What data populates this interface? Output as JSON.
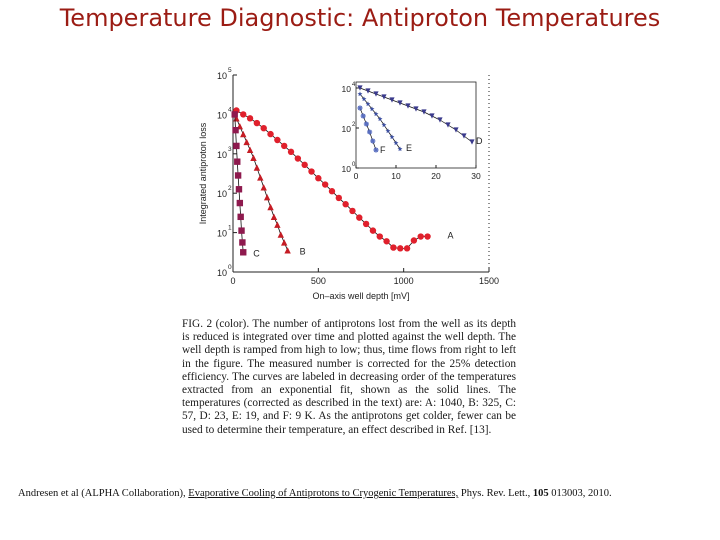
{
  "slide": {
    "title": "Temperature Diagnostic: Antiproton Temperatures"
  },
  "colors": {
    "title": "#9b1c14",
    "seriesA": "#e0202c",
    "seriesB": "#c51c24",
    "seriesC": "#8e1a4e",
    "seriesD": "#3a3a8c",
    "seriesE": "#3b4ea0",
    "seriesF": "#5a6fc0"
  },
  "chart_data": {
    "type": "scatter",
    "xlabel": "On–axis well depth [mV]",
    "ylabel": "Integrated antiproton loss",
    "xlim": [
      0,
      1500
    ],
    "ylim_log10": [
      0,
      5
    ],
    "x_ticks": [
      "0",
      "500",
      "1000",
      "1500"
    ],
    "y_ticks": [
      "10",
      "10",
      "10",
      "10",
      "10",
      "10"
    ],
    "y_tick_exponents": [
      "0",
      "1",
      "2",
      "3",
      "4",
      "5"
    ],
    "series": [
      {
        "name": "A",
        "marker": "circle",
        "color": "#e0202c",
        "x": [
          20,
          60,
          100,
          140,
          180,
          220,
          260,
          300,
          340,
          380,
          420,
          460,
          500,
          540,
          580,
          620,
          660,
          700,
          740,
          780,
          820,
          860,
          900,
          940,
          980,
          1020,
          1060,
          1100,
          1140
        ],
        "y": [
          4.1,
          4.0,
          3.9,
          3.78,
          3.65,
          3.5,
          3.35,
          3.2,
          3.05,
          2.88,
          2.72,
          2.55,
          2.38,
          2.22,
          2.05,
          1.88,
          1.72,
          1.55,
          1.38,
          1.22,
          1.05,
          0.9,
          0.78,
          0.62,
          0.6,
          0.6,
          0.8,
          0.9,
          0.9
        ]
      },
      {
        "name": "B",
        "marker": "triangle",
        "color": "#c51c24",
        "x": [
          20,
          40,
          60,
          80,
          100,
          120,
          140,
          160,
          180,
          200,
          220,
          240,
          260,
          280,
          300,
          320
        ],
        "y": [
          3.9,
          3.7,
          3.5,
          3.3,
          3.1,
          2.9,
          2.65,
          2.4,
          2.15,
          1.9,
          1.65,
          1.4,
          1.2,
          0.95,
          0.75,
          0.55
        ]
      },
      {
        "name": "C",
        "marker": "square",
        "color": "#8e1a4e",
        "x": [
          10,
          15,
          20,
          25,
          30,
          35,
          40,
          45,
          50,
          55,
          60
        ],
        "y": [
          4.0,
          3.6,
          3.2,
          2.8,
          2.45,
          2.1,
          1.75,
          1.4,
          1.05,
          0.75,
          0.5
        ]
      }
    ],
    "inset": {
      "xlim": [
        0,
        30
      ],
      "ylim_log10": [
        0,
        4.3
      ],
      "x_ticks": [
        "0",
        "10",
        "20",
        "30"
      ],
      "y_ticks": [
        "10",
        "10",
        "10"
      ],
      "y_tick_exponents": [
        "0",
        "2",
        "4"
      ],
      "series": [
        {
          "name": "D",
          "marker": "triangle-down",
          "color": "#3a3a8c",
          "x": [
            1,
            3,
            5,
            7,
            9,
            11,
            13,
            15,
            17,
            19,
            21,
            23,
            25,
            27,
            29
          ],
          "y": [
            4.0,
            3.85,
            3.7,
            3.55,
            3.4,
            3.25,
            3.1,
            2.95,
            2.8,
            2.6,
            2.4,
            2.15,
            1.9,
            1.6,
            1.3
          ]
        },
        {
          "name": "E",
          "marker": "star",
          "color": "#3b4ea0",
          "x": [
            1,
            2,
            3,
            4,
            5,
            6,
            7,
            8,
            9,
            10,
            11
          ],
          "y": [
            3.7,
            3.45,
            3.2,
            2.95,
            2.7,
            2.45,
            2.15,
            1.85,
            1.55,
            1.25,
            0.95
          ]
        },
        {
          "name": "F",
          "marker": "asterisk",
          "color": "#5a6fc0",
          "x": [
            1,
            1.8,
            2.6,
            3.4,
            4.2,
            5
          ],
          "y": [
            3.0,
            2.6,
            2.2,
            1.8,
            1.35,
            0.9
          ]
        }
      ]
    }
  },
  "caption": {
    "label": "FIG. 2 (color).",
    "text": "The number of antiprotons lost from the well as its depth is reduced is integrated over time and plotted against the well depth. The well depth is ramped from high to low; thus, time flows from right to left in the figure. The measured number is corrected for the 25% detection efficiency. The curves are labeled in decreasing order of the temperatures extracted from an exponential fit, shown as the solid lines. The temperatures (corrected as described in the text) are: A: 1040, B: 325, C: 57, D: 23, E: 19, and F: 9 K. As the antiprotons get colder, fewer can be used to determine their temperature, an effect described in Ref. [13]."
  },
  "citation": {
    "authors": "Andresen et al (ALPHA Collaboration),",
    "link_text": "Evaporative Cooling of Antiprotons to Cryogenic Temperatures,",
    "journal": "Phys. Rev. Lett.,",
    "volume": "105",
    "rest": "013003, 2010."
  }
}
